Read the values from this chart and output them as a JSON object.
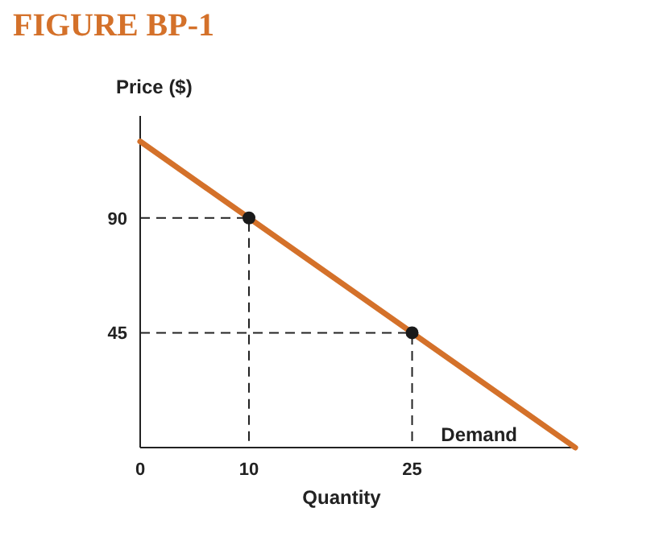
{
  "chart_data": {
    "type": "line",
    "title": "FIGURE BP-1",
    "xlabel": "Quantity",
    "ylabel": "Price ($)",
    "xlim": [
      0,
      40
    ],
    "ylim": [
      0,
      130
    ],
    "xticks": [
      0,
      10,
      25
    ],
    "yticks": [
      45,
      90
    ],
    "series": [
      {
        "name": "Demand",
        "color": "#d4712a",
        "x": [
          0,
          40
        ],
        "values": [
          120,
          0
        ]
      },
      {
        "color": "#222222",
        "line_style": "dashed",
        "x": [
          0,
          10,
          10
        ],
        "values": [
          90,
          90,
          0
        ]
      },
      {
        "color": "#222222",
        "line_style": "dashed",
        "x": [
          0,
          25,
          25
        ],
        "values": [
          45,
          45,
          0
        ]
      },
      {
        "type": "scatter",
        "marker": "circle",
        "color": "#1a1a1a",
        "x": [
          10,
          25
        ],
        "values": [
          90,
          45
        ]
      }
    ],
    "grid": false,
    "legend": false
  }
}
